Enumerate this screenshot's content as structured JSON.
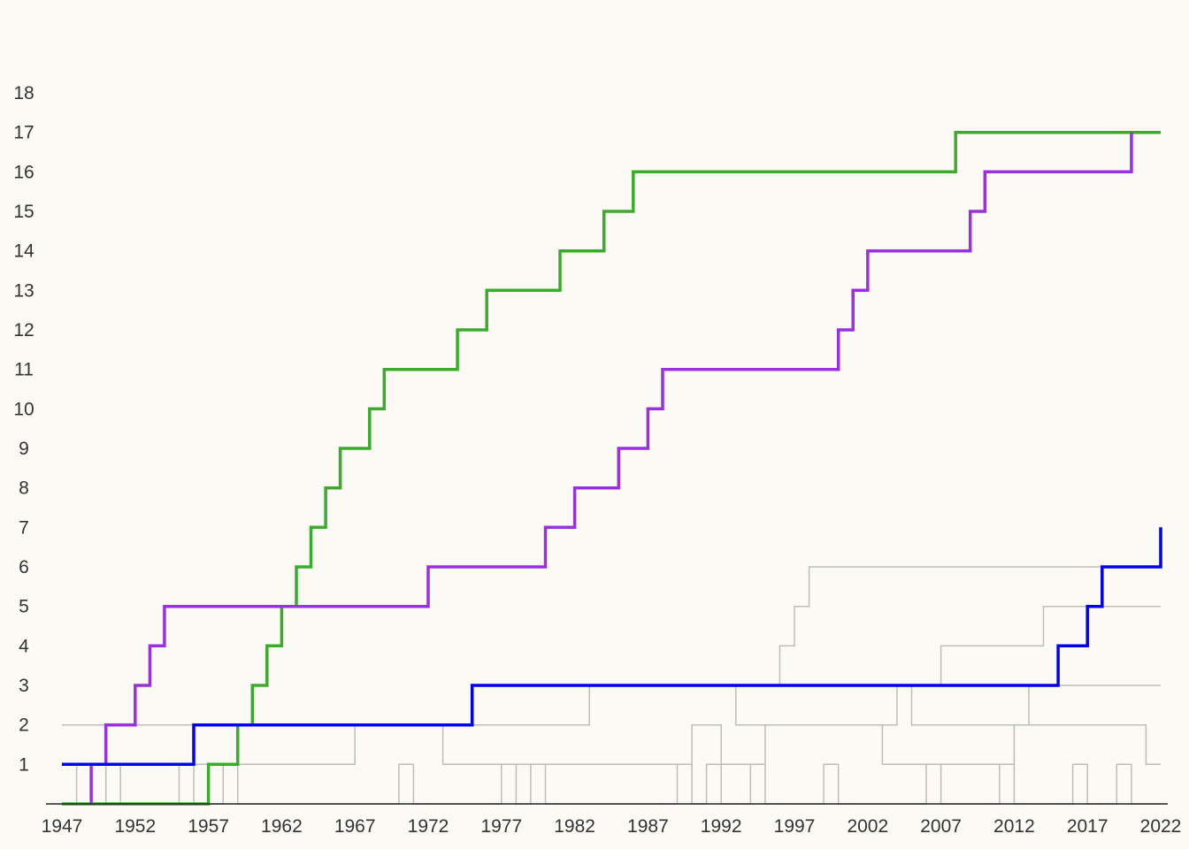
{
  "chart_data": {
    "type": "line",
    "step": true,
    "xlim": [
      1947,
      2022
    ],
    "ylim": [
      0,
      18
    ],
    "x_ticks": [
      "1947",
      "1952",
      "1957",
      "1962",
      "1967",
      "1972",
      "1977",
      "1982",
      "1987",
      "1992",
      "1997",
      "2002",
      "2007",
      "2012",
      "2017",
      "2022"
    ],
    "y_ticks": [
      "1",
      "2",
      "3",
      "4",
      "5",
      "6",
      "7",
      "8",
      "9",
      "10",
      "11",
      "12",
      "13",
      "14",
      "15",
      "16",
      "17",
      "18"
    ],
    "grid": false,
    "legend": "none",
    "series": [
      {
        "color": "#bdbdbd",
        "width": 1.5,
        "points": [
          [
            1947,
            0
          ],
          [
            1948,
            0
          ],
          [
            1948,
            1
          ],
          [
            1949,
            1
          ],
          [
            1949,
            0
          ],
          [
            1950,
            0
          ],
          [
            1950,
            1
          ],
          [
            1951,
            1
          ],
          [
            1951,
            0
          ],
          [
            1955,
            0
          ],
          [
            1955,
            1
          ],
          [
            1956,
            1
          ],
          [
            1956,
            0
          ],
          [
            1958,
            0
          ],
          [
            1958,
            1
          ],
          [
            1959,
            1
          ],
          [
            1959,
            0
          ],
          [
            1970,
            0
          ],
          [
            1970,
            1
          ],
          [
            1971,
            1
          ],
          [
            1971,
            0
          ],
          [
            1977,
            0
          ],
          [
            1977,
            1
          ],
          [
            1978,
            1
          ],
          [
            1978,
            0
          ],
          [
            1979,
            0
          ],
          [
            1979,
            1
          ],
          [
            1980,
            1
          ],
          [
            1980,
            0
          ],
          [
            1989,
            0
          ],
          [
            1989,
            1
          ],
          [
            1990,
            1
          ],
          [
            1990,
            0
          ],
          [
            1991,
            0
          ],
          [
            1991,
            1
          ],
          [
            1992,
            1
          ],
          [
            1992,
            0
          ],
          [
            1994,
            0
          ],
          [
            1994,
            1
          ],
          [
            1995,
            1
          ],
          [
            1995,
            0
          ],
          [
            1999,
            0
          ],
          [
            1999,
            1
          ],
          [
            2000,
            1
          ],
          [
            2000,
            0
          ],
          [
            2006,
            0
          ],
          [
            2006,
            1
          ],
          [
            2007,
            1
          ],
          [
            2007,
            0
          ],
          [
            2011,
            0
          ],
          [
            2011,
            1
          ],
          [
            2012,
            1
          ],
          [
            2012,
            0
          ],
          [
            2016,
            0
          ],
          [
            2016,
            1
          ],
          [
            2017,
            1
          ],
          [
            2017,
            0
          ],
          [
            2019,
            0
          ],
          [
            2019,
            1
          ],
          [
            2020,
            1
          ],
          [
            2020,
            0
          ],
          [
            2022,
            0
          ]
        ]
      },
      {
        "color": "#bdbdbd",
        "width": 1.5,
        "points": [
          [
            1947,
            1
          ],
          [
            1967,
            1
          ],
          [
            1967,
            2
          ],
          [
            1973,
            2
          ],
          [
            1973,
            1
          ],
          [
            1990,
            1
          ],
          [
            1990,
            2
          ],
          [
            1992,
            2
          ],
          [
            1992,
            1
          ],
          [
            1995,
            1
          ],
          [
            1995,
            2
          ],
          [
            2003,
            2
          ],
          [
            2003,
            1
          ],
          [
            2012,
            1
          ],
          [
            2012,
            2
          ],
          [
            2021,
            2
          ],
          [
            2021,
            1
          ],
          [
            2022,
            1
          ]
        ]
      },
      {
        "color": "#bdbdbd",
        "width": 1.5,
        "points": [
          [
            1947,
            2
          ],
          [
            1983,
            2
          ],
          [
            1983,
            3
          ],
          [
            1993,
            3
          ],
          [
            1993,
            2
          ],
          [
            2004,
            2
          ],
          [
            2004,
            3
          ],
          [
            2005,
            3
          ],
          [
            2005,
            2
          ],
          [
            2013,
            2
          ],
          [
            2013,
            3
          ],
          [
            2022,
            3
          ]
        ]
      },
      {
        "color": "#bdbdbd",
        "width": 1.5,
        "points": [
          [
            1996,
            3
          ],
          [
            1996,
            4
          ],
          [
            1997,
            4
          ],
          [
            1997,
            5
          ],
          [
            1998,
            5
          ],
          [
            1998,
            6
          ],
          [
            2022,
            6
          ]
        ]
      },
      {
        "color": "#bdbdbd",
        "width": 1.5,
        "points": [
          [
            2007,
            3
          ],
          [
            2007,
            4
          ],
          [
            2014,
            4
          ],
          [
            2014,
            5
          ],
          [
            2022,
            5
          ]
        ]
      },
      {
        "color": "#3cab2c",
        "width": 3.5,
        "points": [
          [
            1947,
            0
          ],
          [
            1957,
            0
          ],
          [
            1957,
            1
          ],
          [
            1959,
            1
          ],
          [
            1959,
            2
          ],
          [
            1960,
            2
          ],
          [
            1960,
            3
          ],
          [
            1961,
            3
          ],
          [
            1961,
            4
          ],
          [
            1962,
            4
          ],
          [
            1962,
            5
          ],
          [
            1963,
            5
          ],
          [
            1963,
            6
          ],
          [
            1964,
            6
          ],
          [
            1964,
            7
          ],
          [
            1965,
            7
          ],
          [
            1965,
            8
          ],
          [
            1966,
            8
          ],
          [
            1966,
            9
          ],
          [
            1968,
            9
          ],
          [
            1968,
            10
          ],
          [
            1969,
            10
          ],
          [
            1969,
            11
          ],
          [
            1974,
            11
          ],
          [
            1974,
            12
          ],
          [
            1976,
            12
          ],
          [
            1976,
            13
          ],
          [
            1981,
            13
          ],
          [
            1981,
            14
          ],
          [
            1984,
            14
          ],
          [
            1984,
            15
          ],
          [
            1986,
            15
          ],
          [
            1986,
            16
          ],
          [
            2008,
            16
          ],
          [
            2008,
            17
          ],
          [
            2022,
            17
          ]
        ]
      },
      {
        "color": "#9b30e0",
        "width": 3.5,
        "points": [
          [
            1949,
            0
          ],
          [
            1949,
            1
          ],
          [
            1950,
            1
          ],
          [
            1950,
            2
          ],
          [
            1952,
            2
          ],
          [
            1952,
            3
          ],
          [
            1953,
            3
          ],
          [
            1953,
            4
          ],
          [
            1954,
            4
          ],
          [
            1954,
            5
          ],
          [
            1972,
            5
          ],
          [
            1972,
            6
          ],
          [
            1980,
            6
          ],
          [
            1980,
            7
          ],
          [
            1982,
            7
          ],
          [
            1982,
            8
          ],
          [
            1985,
            8
          ],
          [
            1985,
            9
          ],
          [
            1987,
            9
          ],
          [
            1987,
            10
          ],
          [
            1988,
            10
          ],
          [
            1988,
            11
          ],
          [
            2000,
            11
          ],
          [
            2000,
            12
          ],
          [
            2001,
            12
          ],
          [
            2001,
            13
          ],
          [
            2002,
            13
          ],
          [
            2002,
            14
          ],
          [
            2009,
            14
          ],
          [
            2009,
            15
          ],
          [
            2010,
            15
          ],
          [
            2010,
            16
          ],
          [
            2020,
            16
          ],
          [
            2020,
            17
          ]
        ]
      },
      {
        "color": "#0000ee",
        "width": 3.5,
        "points": [
          [
            1947,
            1
          ],
          [
            1956,
            1
          ],
          [
            1956,
            2
          ],
          [
            1975,
            2
          ],
          [
            1975,
            3
          ],
          [
            2015,
            3
          ],
          [
            2015,
            4
          ],
          [
            2017,
            4
          ],
          [
            2017,
            5
          ],
          [
            2018,
            5
          ],
          [
            2018,
            6
          ],
          [
            2022,
            6
          ],
          [
            2022,
            7
          ]
        ]
      }
    ]
  }
}
